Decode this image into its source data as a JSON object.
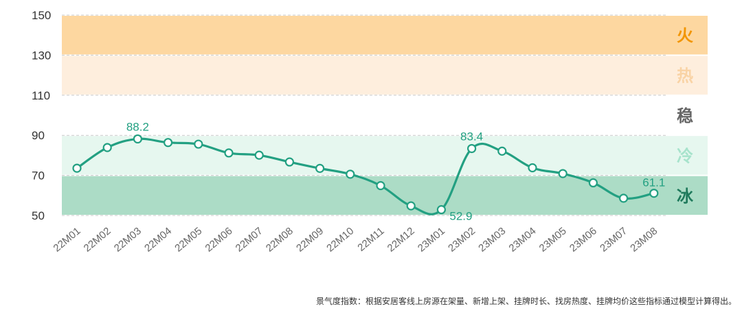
{
  "chart_data": {
    "type": "line",
    "title": "",
    "xlabel": "",
    "ylabel": "",
    "ylim": [
      50,
      150
    ],
    "yticks": [
      50,
      70,
      90,
      110,
      130,
      150
    ],
    "grid": "horizontal dashed",
    "categories": [
      "22M01",
      "22M02",
      "22M03",
      "22M04",
      "22M05",
      "22M06",
      "22M07",
      "22M08",
      "22M09",
      "22M10",
      "22M11",
      "22M12",
      "23M01",
      "23M02",
      "23M03",
      "23M04",
      "23M05",
      "23M06",
      "23M07",
      "23M08"
    ],
    "series": [
      {
        "values": [
          73.6,
          83.9,
          88.2,
          86.4,
          85.6,
          81.2,
          80.1,
          76.7,
          73.5,
          70.6,
          64.9,
          54.8,
          52.9,
          83.4,
          82.1,
          73.8,
          70.9,
          66.3,
          58.6,
          61.1
        ],
        "color": "#23a082"
      }
    ],
    "data_labels": [
      {
        "index": 2,
        "text": "88.2"
      },
      {
        "index": 12,
        "text": "52.9"
      },
      {
        "index": 13,
        "text": "83.4"
      },
      {
        "index": 19,
        "text": "61.1"
      }
    ],
    "zones": [
      {
        "label": "火",
        "from": 130,
        "to": 150,
        "band_color": "#fdd7a0",
        "text_color": "#f29500"
      },
      {
        "label": "热",
        "from": 110,
        "to": 130,
        "band_color": "#feeedd",
        "text_color": "#f9d3a5"
      },
      {
        "label": "稳",
        "from": 90,
        "to": 110,
        "band_color": "#ffffff",
        "text_color": "#666666"
      },
      {
        "label": "冷",
        "from": 70,
        "to": 90,
        "band_color": "#e6f7ef",
        "text_color": "#a7e3cc"
      },
      {
        "label": "冰",
        "from": 50,
        "to": 70,
        "band_color": "#acdcc6",
        "text_color": "#1f7a5c"
      }
    ]
  },
  "footnote": "景气度指数：根据安居客线上房源在架量、新增上架、挂牌时长、找房热度、挂牌均价这些指标通过模型计算得出。"
}
